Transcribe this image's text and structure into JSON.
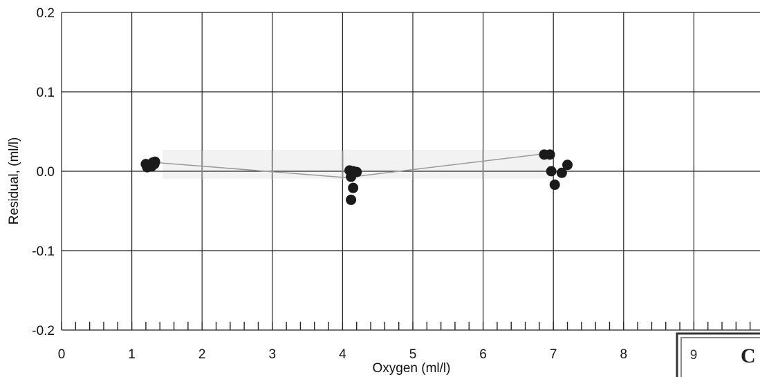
{
  "chart_data": {
    "type": "scatter",
    "xlabel": "Oxygen (ml/l)",
    "ylabel": "Residual, (ml/l)",
    "xlim": [
      0,
      10
    ],
    "ylim": [
      -0.2,
      0.2
    ],
    "x_ticks": [
      0,
      1,
      2,
      3,
      4,
      5,
      6,
      7,
      8,
      9
    ],
    "y_ticks": [
      0.2,
      0.1,
      0.0,
      -0.1,
      -0.2
    ],
    "y_tick_labels": [
      "0.2",
      "0.1",
      "0.0",
      "-0.1",
      "-0.2"
    ],
    "grid": true,
    "points": [
      {
        "x": 1.2,
        "y": 0.009
      },
      {
        "x": 1.22,
        "y": 0.005
      },
      {
        "x": 1.25,
        "y": 0.008
      },
      {
        "x": 1.28,
        "y": 0.006
      },
      {
        "x": 1.3,
        "y": 0.011
      },
      {
        "x": 1.33,
        "y": 0.012
      },
      {
        "x": 1.32,
        "y": 0.009
      },
      {
        "x": 4.1,
        "y": 0.001
      },
      {
        "x": 4.15,
        "y": 0.0
      },
      {
        "x": 4.2,
        "y": -0.001
      },
      {
        "x": 4.12,
        "y": -0.007
      },
      {
        "x": 4.15,
        "y": -0.021
      },
      {
        "x": 4.12,
        "y": -0.036
      },
      {
        "x": 6.87,
        "y": 0.021
      },
      {
        "x": 6.95,
        "y": 0.021
      },
      {
        "x": 6.97,
        "y": 0.0
      },
      {
        "x": 7.02,
        "y": -0.017
      },
      {
        "x": 7.12,
        "y": -0.002
      },
      {
        "x": 7.2,
        "y": 0.008
      }
    ],
    "trend_line": [
      {
        "x": 1.33,
        "y": 0.011
      },
      {
        "x": 4.05,
        "y": -0.008
      },
      {
        "x": 6.87,
        "y": 0.022
      }
    ]
  },
  "stamp": {
    "digit": "9",
    "text": "C"
  }
}
